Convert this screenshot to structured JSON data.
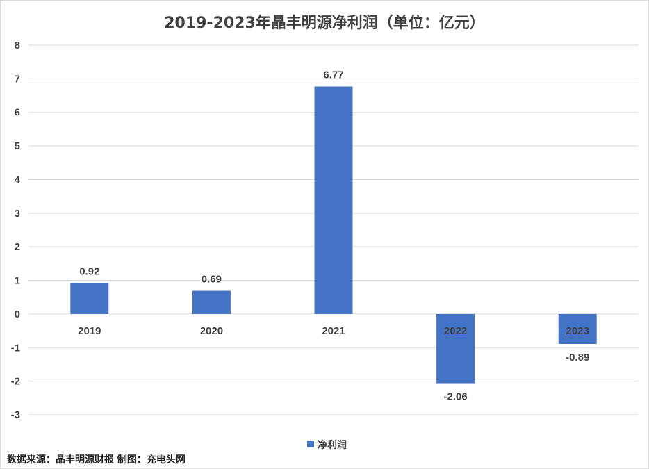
{
  "chart_data": {
    "type": "bar",
    "title": "2019-2023年晶丰明源净利润（单位：亿元）",
    "categories": [
      "2019",
      "2020",
      "2021",
      "2022",
      "2023"
    ],
    "series": [
      {
        "name": "净利润",
        "color": "#4472c4",
        "values": [
          0.92,
          0.69,
          6.77,
          -2.06,
          -0.89
        ],
        "labels": [
          "0.92",
          "0.69",
          "6.77",
          "-2.06",
          "-0.89"
        ]
      }
    ],
    "ylim": [
      -3,
      8
    ],
    "yticks": [
      8,
      7,
      6,
      5,
      4,
      3,
      2,
      1,
      0,
      -1,
      -2,
      -3
    ],
    "grid": true,
    "legend_position": "bottom"
  },
  "footer": {
    "source_text": "数据来源：晶丰明源财报  制图：充电头网"
  }
}
